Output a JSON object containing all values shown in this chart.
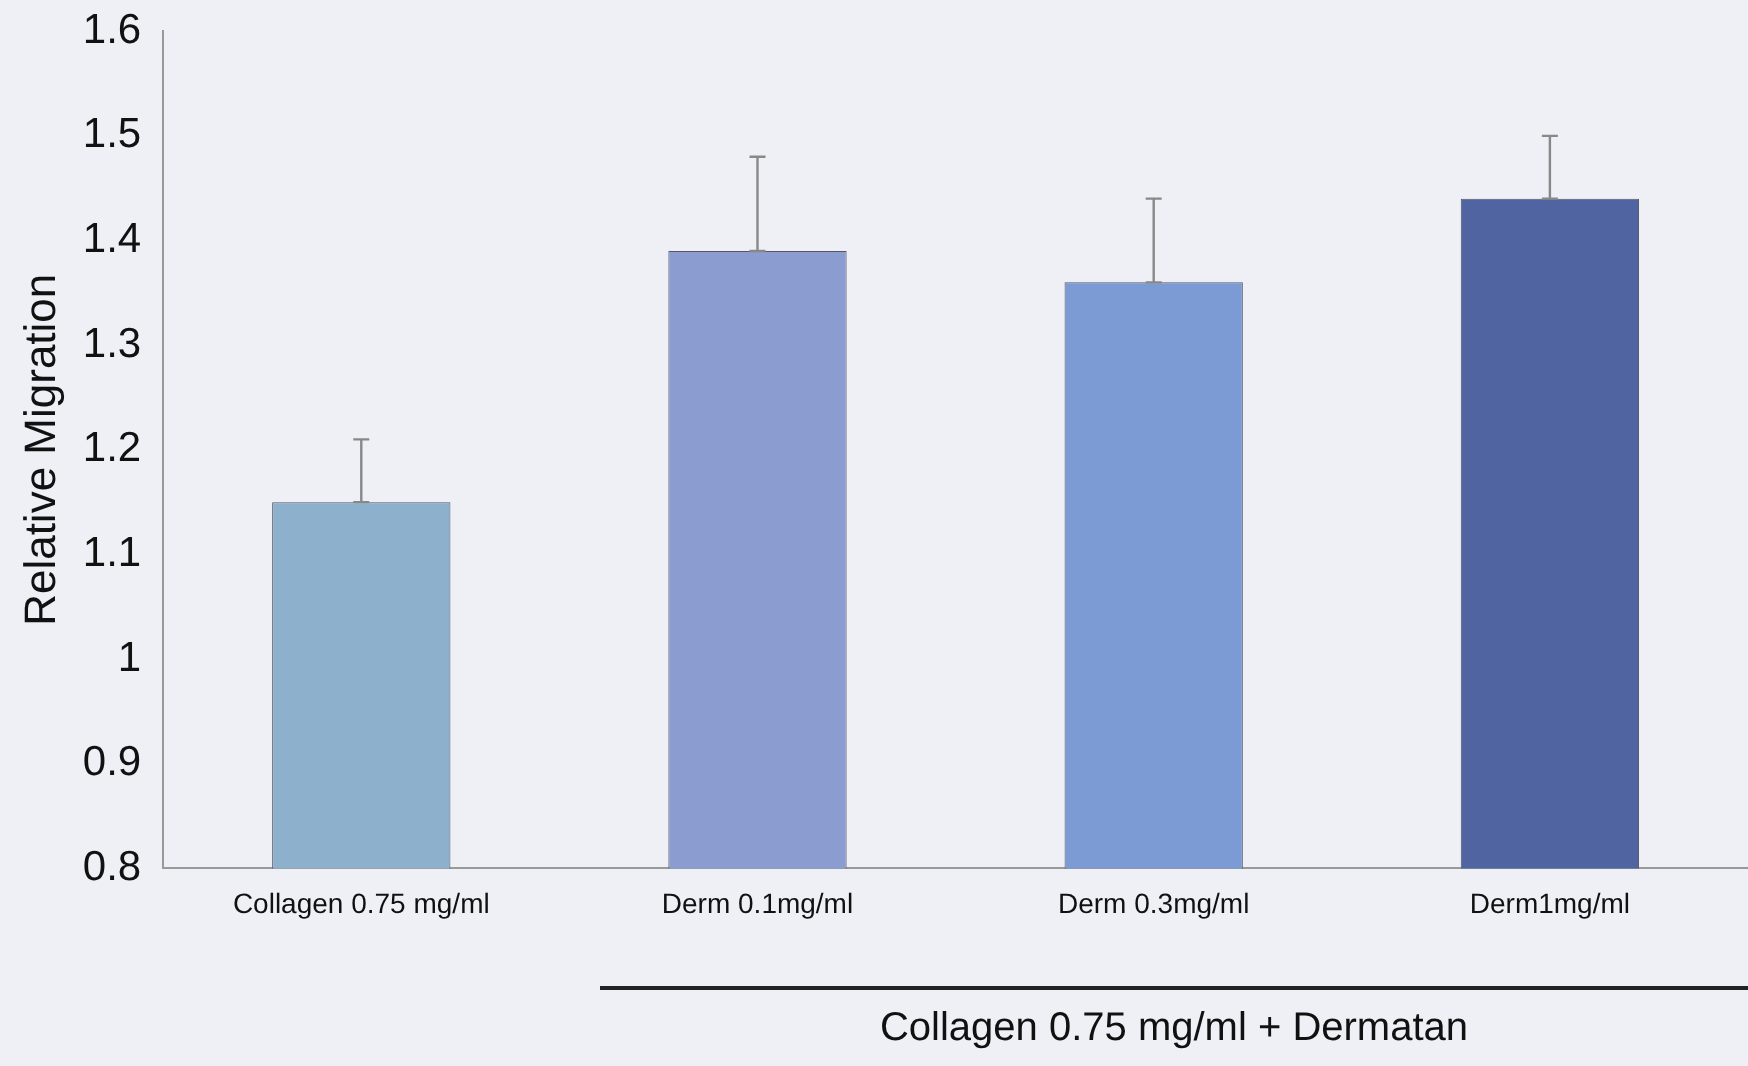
{
  "chart_data": {
    "type": "bar",
    "ylabel": "Relative Migration",
    "categories": [
      "Collagen 0.75 mg/ml",
      "Derm 0.1mg/ml",
      "Derm 0.3mg/ml",
      "Derm1mg/ml"
    ],
    "values": [
      1.15,
      1.39,
      1.36,
      1.44
    ],
    "colors": [
      "#8db0cc",
      "#8a9cd0",
      "#7c9ad4",
      "#4f64a0"
    ],
    "errors": [
      [
        1.15,
        1.21
      ],
      [
        1.39,
        1.48
      ],
      [
        1.36,
        1.44
      ],
      [
        1.44,
        1.5
      ]
    ],
    "ylim": [
      0.8,
      1.6
    ],
    "yticks": [
      0.8,
      0.9,
      1,
      1.1,
      1.2,
      1.3,
      1.4,
      1.5,
      1.6
    ],
    "annotations": [
      "Collagen 0.75 mg/ml + Dermatan"
    ],
    "grid": false,
    "legend": false
  }
}
